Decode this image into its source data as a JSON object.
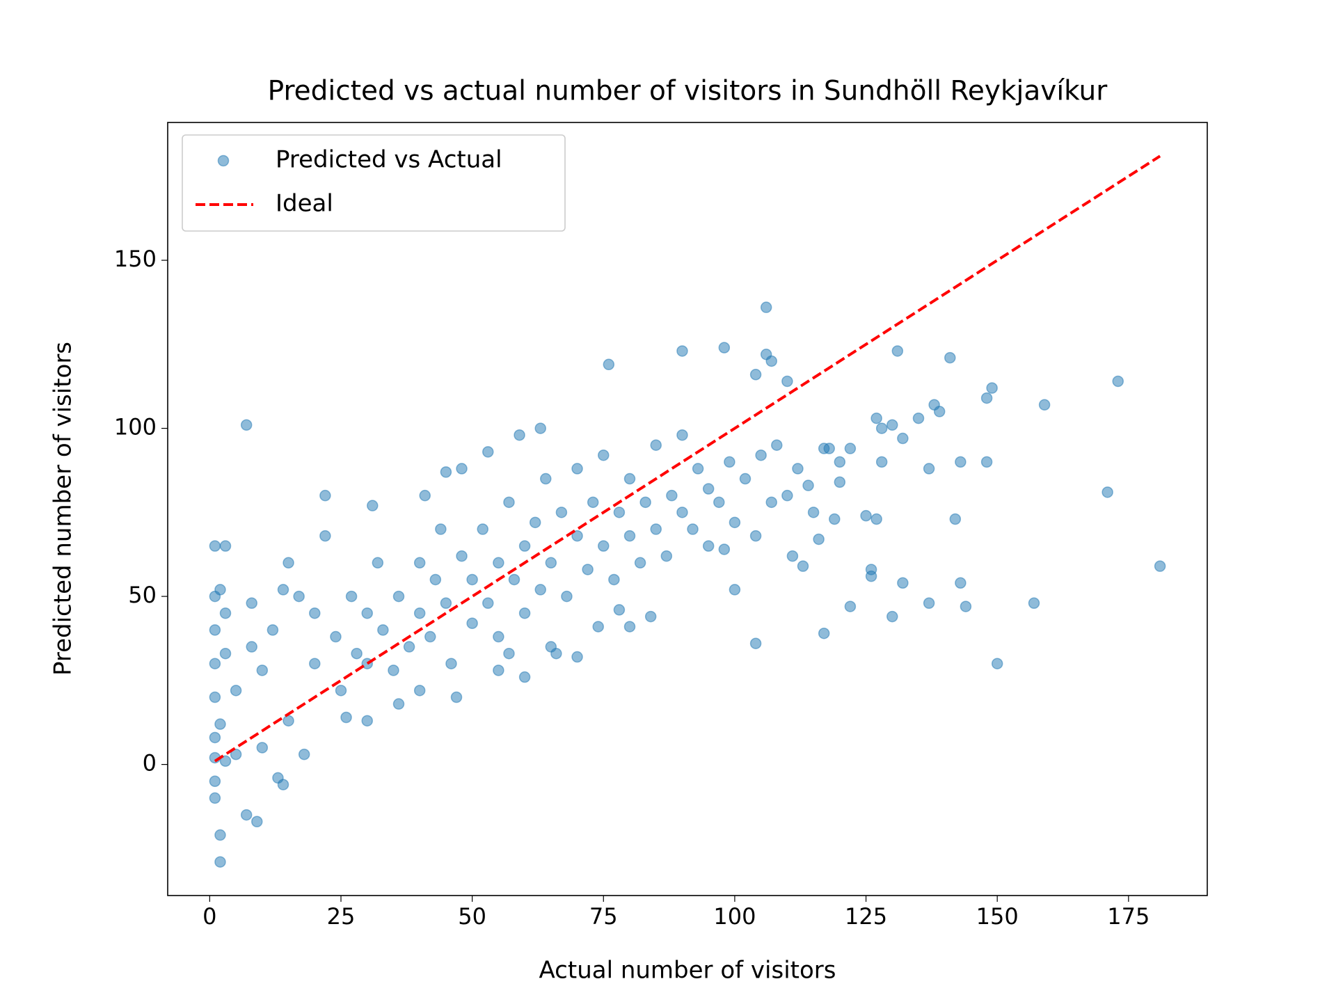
{
  "chart_data": {
    "type": "scatter",
    "title": "Predicted vs actual number of visitors in Sundhöll Reykjavíkur",
    "xlabel": "Actual number of visitors",
    "ylabel": "Predicted number of visitors",
    "xlim": [
      -8,
      190
    ],
    "ylim": [
      -39,
      191
    ],
    "xticks": [
      0,
      25,
      50,
      75,
      100,
      125,
      150,
      175
    ],
    "yticks": [
      0,
      50,
      100,
      150
    ],
    "grid": false,
    "legend": "upper left",
    "series": [
      {
        "name": "Predicted vs Actual",
        "type": "scatter",
        "color": "#1f77b4",
        "alpha": 0.5,
        "x": [
          7,
          106,
          1,
          3,
          2,
          2,
          9,
          7,
          14,
          13,
          18,
          22,
          22,
          31,
          76,
          90,
          98,
          106,
          107,
          104,
          110,
          131,
          141,
          149,
          148,
          159,
          173,
          171,
          181,
          150,
          157,
          143,
          144,
          137,
          130,
          132,
          122,
          117,
          104,
          126,
          126,
          143,
          148,
          142,
          137,
          138,
          139,
          135,
          132,
          130,
          128,
          127,
          128,
          125,
          127,
          119,
          113,
          111,
          116,
          120,
          118,
          100,
          98,
          70,
          66,
          74,
          80,
          84,
          78,
          60,
          57,
          47,
          36,
          26,
          15,
          10,
          5,
          3,
          1,
          1,
          1,
          1,
          2,
          1,
          1,
          1,
          1,
          2,
          3,
          3,
          5,
          8,
          8,
          10,
          12,
          15,
          14,
          17,
          20,
          20,
          24,
          25,
          27,
          28,
          30,
          30,
          32,
          33,
          35,
          36,
          38,
          40,
          40,
          42,
          43,
          44,
          45,
          46,
          48,
          50,
          50,
          52,
          53,
          55,
          55,
          57,
          58,
          60,
          60,
          62,
          63,
          64,
          65,
          67,
          68,
          70,
          70,
          72,
          73,
          75,
          75,
          77,
          78,
          80,
          80,
          82,
          83,
          85,
          85,
          87,
          88,
          90,
          90,
          92,
          93,
          95,
          95,
          97,
          99,
          100,
          102,
          104,
          105,
          107,
          108,
          110,
          112,
          114,
          115,
          117,
          120,
          122,
          48,
          53,
          59,
          63,
          41,
          45,
          30,
          40,
          55,
          65
        ],
        "values": [
          101,
          136,
          65,
          65,
          -29,
          -21,
          -17,
          -15,
          -6,
          -4,
          3,
          80,
          68,
          77,
          119,
          123,
          124,
          122,
          120,
          116,
          114,
          123,
          121,
          112,
          109,
          107,
          114,
          81,
          59,
          30,
          48,
          54,
          47,
          48,
          44,
          54,
          47,
          39,
          36,
          58,
          56,
          90,
          90,
          73,
          88,
          107,
          105,
          103,
          97,
          101,
          100,
          103,
          90,
          74,
          73,
          73,
          59,
          62,
          67,
          90,
          94,
          52,
          64,
          32,
          33,
          41,
          41,
          44,
          46,
          26,
          33,
          20,
          18,
          14,
          13,
          5,
          3,
          1,
          -10,
          -5,
          2,
          8,
          12,
          20,
          30,
          40,
          50,
          52,
          45,
          33,
          22,
          35,
          48,
          28,
          40,
          60,
          52,
          50,
          45,
          30,
          38,
          22,
          50,
          33,
          30,
          45,
          60,
          40,
          28,
          50,
          35,
          45,
          60,
          38,
          55,
          70,
          48,
          30,
          62,
          42,
          55,
          70,
          48,
          60,
          38,
          78,
          55,
          65,
          45,
          72,
          52,
          85,
          60,
          75,
          50,
          68,
          88,
          58,
          78,
          65,
          92,
          55,
          75,
          68,
          85,
          60,
          78,
          70,
          95,
          62,
          80,
          75,
          98,
          70,
          88,
          65,
          82,
          78,
          90,
          72,
          85,
          68,
          92,
          78,
          95,
          80,
          88,
          83,
          75,
          94,
          84,
          94,
          88,
          93,
          98,
          100,
          80,
          87,
          13,
          22,
          28,
          35
        ]
      },
      {
        "name": "Ideal",
        "type": "line",
        "color": "#ff0000",
        "linestyle": "dashed",
        "x": [
          1,
          181
        ],
        "values": [
          1,
          181
        ]
      }
    ]
  }
}
